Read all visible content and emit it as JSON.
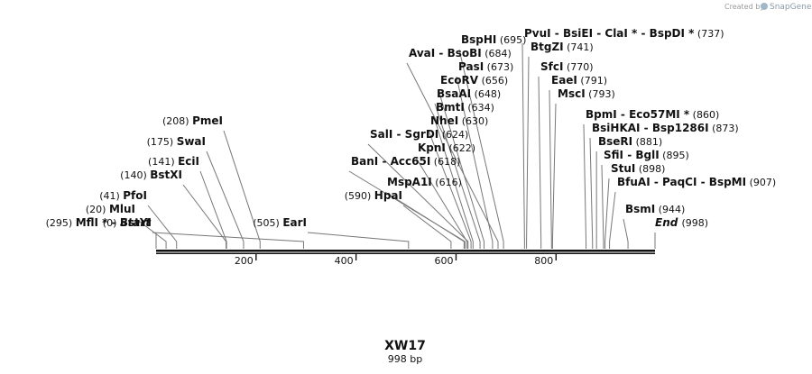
{
  "credit": {
    "text": "Created by",
    "brand": "SnapGene"
  },
  "sequence": {
    "name": "XW17",
    "length_label": "998 bp",
    "length": 998
  },
  "ends": {
    "start": {
      "label": "Start",
      "pos": 0,
      "pos_label": "(0)"
    },
    "end": {
      "label": "End",
      "pos": 998,
      "pos_label": "(998)"
    }
  },
  "ticks": [
    {
      "value": 200,
      "label": "200"
    },
    {
      "value": 400,
      "label": "400"
    },
    {
      "value": 600,
      "label": "600"
    },
    {
      "value": 800,
      "label": "800"
    }
  ],
  "sites": [
    {
      "pos": 20,
      "pos_label": "(20)",
      "names": [
        "MluI"
      ]
    },
    {
      "pos": 41,
      "pos_label": "(41)",
      "names": [
        "PfoI"
      ]
    },
    {
      "pos": 140,
      "pos_label": "(140)",
      "names": [
        "BstXI"
      ]
    },
    {
      "pos": 141,
      "pos_label": "(141)",
      "names": [
        "EciI"
      ]
    },
    {
      "pos": 175,
      "pos_label": "(175)",
      "names": [
        "SwaI"
      ]
    },
    {
      "pos": 208,
      "pos_label": "(208)",
      "names": [
        "PmeI"
      ]
    },
    {
      "pos": 295,
      "pos_label": "(295)",
      "names": [
        "MflI *",
        "BstYI"
      ]
    },
    {
      "pos": 505,
      "pos_label": "(505)",
      "names": [
        "EarI"
      ]
    },
    {
      "pos": 590,
      "pos_label": "(590)",
      "names": [
        "HpaI"
      ]
    },
    {
      "pos": 616,
      "pos_label": "(616)",
      "names": [
        "MspA1I"
      ]
    },
    {
      "pos": 618,
      "pos_label": "(618)",
      "names": [
        "BanI",
        "Acc65I"
      ]
    },
    {
      "pos": 622,
      "pos_label": "(622)",
      "names": [
        "KpnI"
      ]
    },
    {
      "pos": 624,
      "pos_label": "(624)",
      "names": [
        "SalI",
        "SgrDI"
      ]
    },
    {
      "pos": 630,
      "pos_label": "(630)",
      "names": [
        "NheI"
      ]
    },
    {
      "pos": 634,
      "pos_label": "(634)",
      "names": [
        "BmtI"
      ]
    },
    {
      "pos": 648,
      "pos_label": "(648)",
      "names": [
        "BsaAI"
      ]
    },
    {
      "pos": 656,
      "pos_label": "(656)",
      "names": [
        "EcoRV"
      ]
    },
    {
      "pos": 673,
      "pos_label": "(673)",
      "names": [
        "PasI"
      ]
    },
    {
      "pos": 684,
      "pos_label": "(684)",
      "names": [
        "AvaI",
        "BsoBI"
      ]
    },
    {
      "pos": 695,
      "pos_label": "(695)",
      "names": [
        "BspHI"
      ]
    },
    {
      "pos": 737,
      "pos_label": "(737)",
      "names": [
        "PvuI",
        "BsiEI",
        "ClaI *",
        "BspDI *"
      ]
    },
    {
      "pos": 741,
      "pos_label": "(741)",
      "names": [
        "BtgZI"
      ]
    },
    {
      "pos": 770,
      "pos_label": "(770)",
      "names": [
        "SfcI"
      ]
    },
    {
      "pos": 791,
      "pos_label": "(791)",
      "names": [
        "EaeI"
      ]
    },
    {
      "pos": 793,
      "pos_label": "(793)",
      "names": [
        "MscI"
      ]
    },
    {
      "pos": 860,
      "pos_label": "(860)",
      "names": [
        "BpmI",
        "Eco57MI *"
      ]
    },
    {
      "pos": 873,
      "pos_label": "(873)",
      "names": [
        "BsiHKAI",
        "Bsp1286I"
      ]
    },
    {
      "pos": 881,
      "pos_label": "(881)",
      "names": [
        "BseRI"
      ]
    },
    {
      "pos": 895,
      "pos_label": "(895)",
      "names": [
        "SfiI",
        "BglI"
      ]
    },
    {
      "pos": 898,
      "pos_label": "(898)",
      "names": [
        "StuI"
      ]
    },
    {
      "pos": 907,
      "pos_label": "(907)",
      "names": [
        "BfuAI",
        "PaqCI",
        "BspMI"
      ]
    },
    {
      "pos": 944,
      "pos_label": "(944)",
      "names": [
        "BsmI"
      ]
    }
  ]
}
